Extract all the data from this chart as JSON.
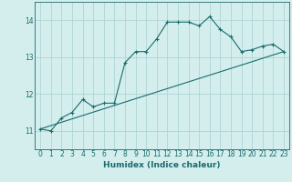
{
  "xlabel": "Humidex (Indice chaleur)",
  "ylabel": "",
  "background_color": "#d4eeee",
  "line_color": "#1a6b6b",
  "grid_color": "#aed4d4",
  "xlim": [
    -0.5,
    23.5
  ],
  "ylim": [
    10.5,
    14.5
  ],
  "yticks": [
    11,
    12,
    13,
    14
  ],
  "xticks": [
    0,
    1,
    2,
    3,
    4,
    5,
    6,
    7,
    8,
    9,
    10,
    11,
    12,
    13,
    14,
    15,
    16,
    17,
    18,
    19,
    20,
    21,
    22,
    23
  ],
  "series1_x": [
    0,
    1,
    2,
    3,
    4,
    5,
    6,
    7,
    8,
    9,
    10,
    11,
    12,
    13,
    14,
    15,
    16,
    17,
    18,
    19,
    20,
    21,
    22,
    23
  ],
  "series1_y": [
    11.05,
    11.0,
    11.35,
    11.5,
    11.85,
    11.65,
    11.75,
    11.75,
    12.85,
    13.15,
    13.15,
    13.5,
    13.95,
    13.95,
    13.95,
    13.85,
    14.1,
    13.75,
    13.55,
    13.15,
    13.2,
    13.3,
    13.35,
    13.15
  ],
  "series2_x": [
    0,
    23
  ],
  "series2_y": [
    11.05,
    13.15
  ]
}
